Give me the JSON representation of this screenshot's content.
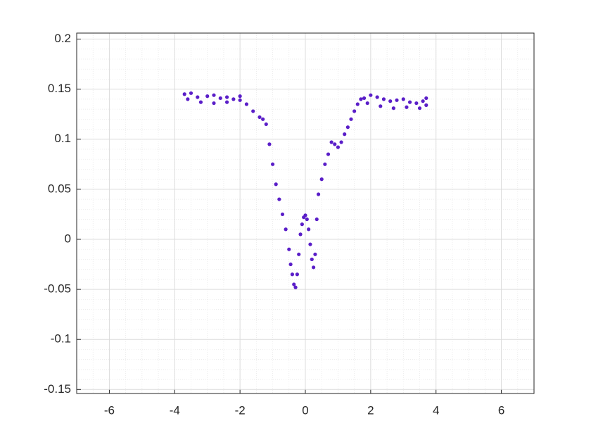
{
  "chart_data": {
    "type": "scatter",
    "color": "#5a1ec8",
    "grid": true,
    "minor_grid": true,
    "xlim": [
      -7,
      7
    ],
    "ylim": [
      -0.154,
      0.206
    ],
    "xticks": [
      -6,
      -4,
      -2,
      0,
      2,
      4,
      6
    ],
    "yticks": [
      -0.15,
      -0.1,
      -0.05,
      0,
      0.05,
      0.1,
      0.15,
      0.2
    ],
    "x": [
      -3.7,
      -3.5,
      -3.3,
      -3.0,
      -2.8,
      -2.6,
      -2.4,
      -2.2,
      -2.0,
      -1.8,
      -1.6,
      -1.4,
      -1.3,
      -1.2,
      -1.1,
      -1.0,
      -0.9,
      -0.8,
      -0.7,
      -0.6,
      -0.5,
      -0.45,
      -0.4,
      -0.35,
      -0.3,
      -0.25,
      -0.2,
      -0.15,
      -0.1,
      -0.05,
      0,
      0.05,
      0.1,
      0.15,
      0.2,
      0.25,
      0.3,
      0.35,
      0.4,
      0.5,
      0.6,
      0.7,
      0.8,
      0.9,
      1.0,
      1.1,
      1.2,
      1.3,
      1.4,
      1.5,
      1.6,
      1.7,
      1.8,
      2.0,
      2.2,
      2.4,
      2.6,
      2.8,
      3.0,
      3.2,
      3.4,
      3.6,
      3.7,
      -3.6,
      -3.2,
      -2.8,
      -2.4,
      -2.0,
      1.9,
      2.3,
      2.7,
      3.1,
      3.5,
      3.7
    ],
    "values": [
      0.145,
      0.146,
      0.142,
      0.143,
      0.144,
      0.141,
      0.142,
      0.14,
      0.143,
      0.135,
      0.128,
      0.122,
      0.12,
      0.115,
      0.095,
      0.075,
      0.055,
      0.04,
      0.025,
      0.01,
      -0.01,
      -0.025,
      -0.035,
      -0.045,
      -0.048,
      -0.035,
      -0.015,
      0.005,
      0.015,
      0.022,
      0.024,
      0.02,
      0.01,
      -0.005,
      -0.02,
      -0.028,
      -0.015,
      0.02,
      0.045,
      0.06,
      0.075,
      0.085,
      0.097,
      0.095,
      0.092,
      0.097,
      0.105,
      0.112,
      0.12,
      0.128,
      0.135,
      0.14,
      0.141,
      0.144,
      0.142,
      0.14,
      0.138,
      0.139,
      0.14,
      0.137,
      0.136,
      0.138,
      0.141,
      0.14,
      0.137,
      0.136,
      0.137,
      0.139,
      0.136,
      0.133,
      0.131,
      0.132,
      0.131,
      0.134
    ]
  }
}
